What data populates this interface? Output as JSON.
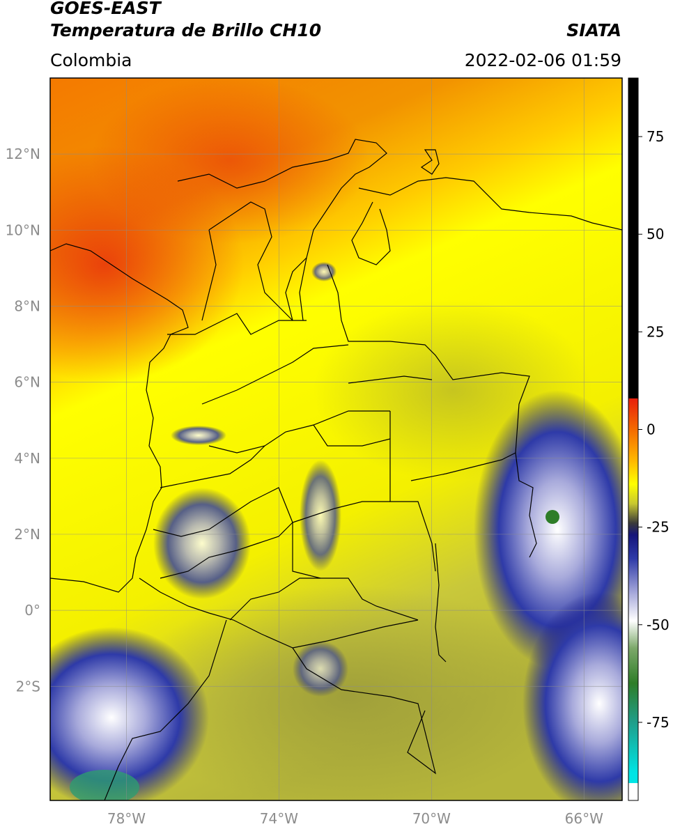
{
  "header": {
    "satellite": "GOES-EAST",
    "product": "Temperatura de Brillo CH10",
    "region": "Colombia",
    "brand": "SIATA",
    "datetime": "2022-02-06 01:59"
  },
  "map": {
    "lon_ticks": [
      {
        "value": -78,
        "label": "78°W"
      },
      {
        "value": -74,
        "label": "74°W"
      },
      {
        "value": -70,
        "label": "70°W"
      },
      {
        "value": -66,
        "label": "66°W"
      }
    ],
    "lat_ticks": [
      {
        "value": 12,
        "label": "12°N"
      },
      {
        "value": 10,
        "label": "10°N"
      },
      {
        "value": 8,
        "label": "8°N"
      },
      {
        "value": 6,
        "label": "6°N"
      },
      {
        "value": 4,
        "label": "4°N"
      },
      {
        "value": 2,
        "label": "2°N"
      },
      {
        "value": 0,
        "label": "0°"
      },
      {
        "value": -2,
        "label": "2°S"
      }
    ],
    "lon_range": [
      -80,
      -65
    ],
    "lat_range": [
      -5,
      14
    ],
    "gridlines": true
  },
  "colorbar": {
    "range": [
      -95,
      90
    ],
    "ticks": [
      {
        "value": 75,
        "label": "75"
      },
      {
        "value": 50,
        "label": "50"
      },
      {
        "value": 25,
        "label": "25"
      },
      {
        "value": 0,
        "label": "0"
      },
      {
        "value": -25,
        "label": "-25"
      },
      {
        "value": -50,
        "label": "-50"
      },
      {
        "value": -75,
        "label": "-75"
      }
    ],
    "stops": [
      {
        "value": 90,
        "color": "#000000"
      },
      {
        "value": 8,
        "color": "#000000"
      },
      {
        "value": 7.9,
        "color": "#e8200c"
      },
      {
        "value": 0,
        "color": "#f46a00"
      },
      {
        "value": -8,
        "color": "#ffb800"
      },
      {
        "value": -14,
        "color": "#ffff00"
      },
      {
        "value": -19,
        "color": "#c8c830"
      },
      {
        "value": -24,
        "color": "#3a3a3a"
      },
      {
        "value": -27,
        "color": "#15157a"
      },
      {
        "value": -33,
        "color": "#2e3aa8"
      },
      {
        "value": -42,
        "color": "#a8aadb"
      },
      {
        "value": -49,
        "color": "#ffffff"
      },
      {
        "value": -56,
        "color": "#7ca86a"
      },
      {
        "value": -65,
        "color": "#2e7d28"
      },
      {
        "value": -75,
        "color": "#1f9e8a"
      },
      {
        "value": -88,
        "color": "#00e5e5"
      },
      {
        "value": -90.5,
        "color": "#00e5e5"
      },
      {
        "value": -90.6,
        "color": "#ffffff"
      },
      {
        "value": -95,
        "color": "#ffffff"
      }
    ]
  }
}
